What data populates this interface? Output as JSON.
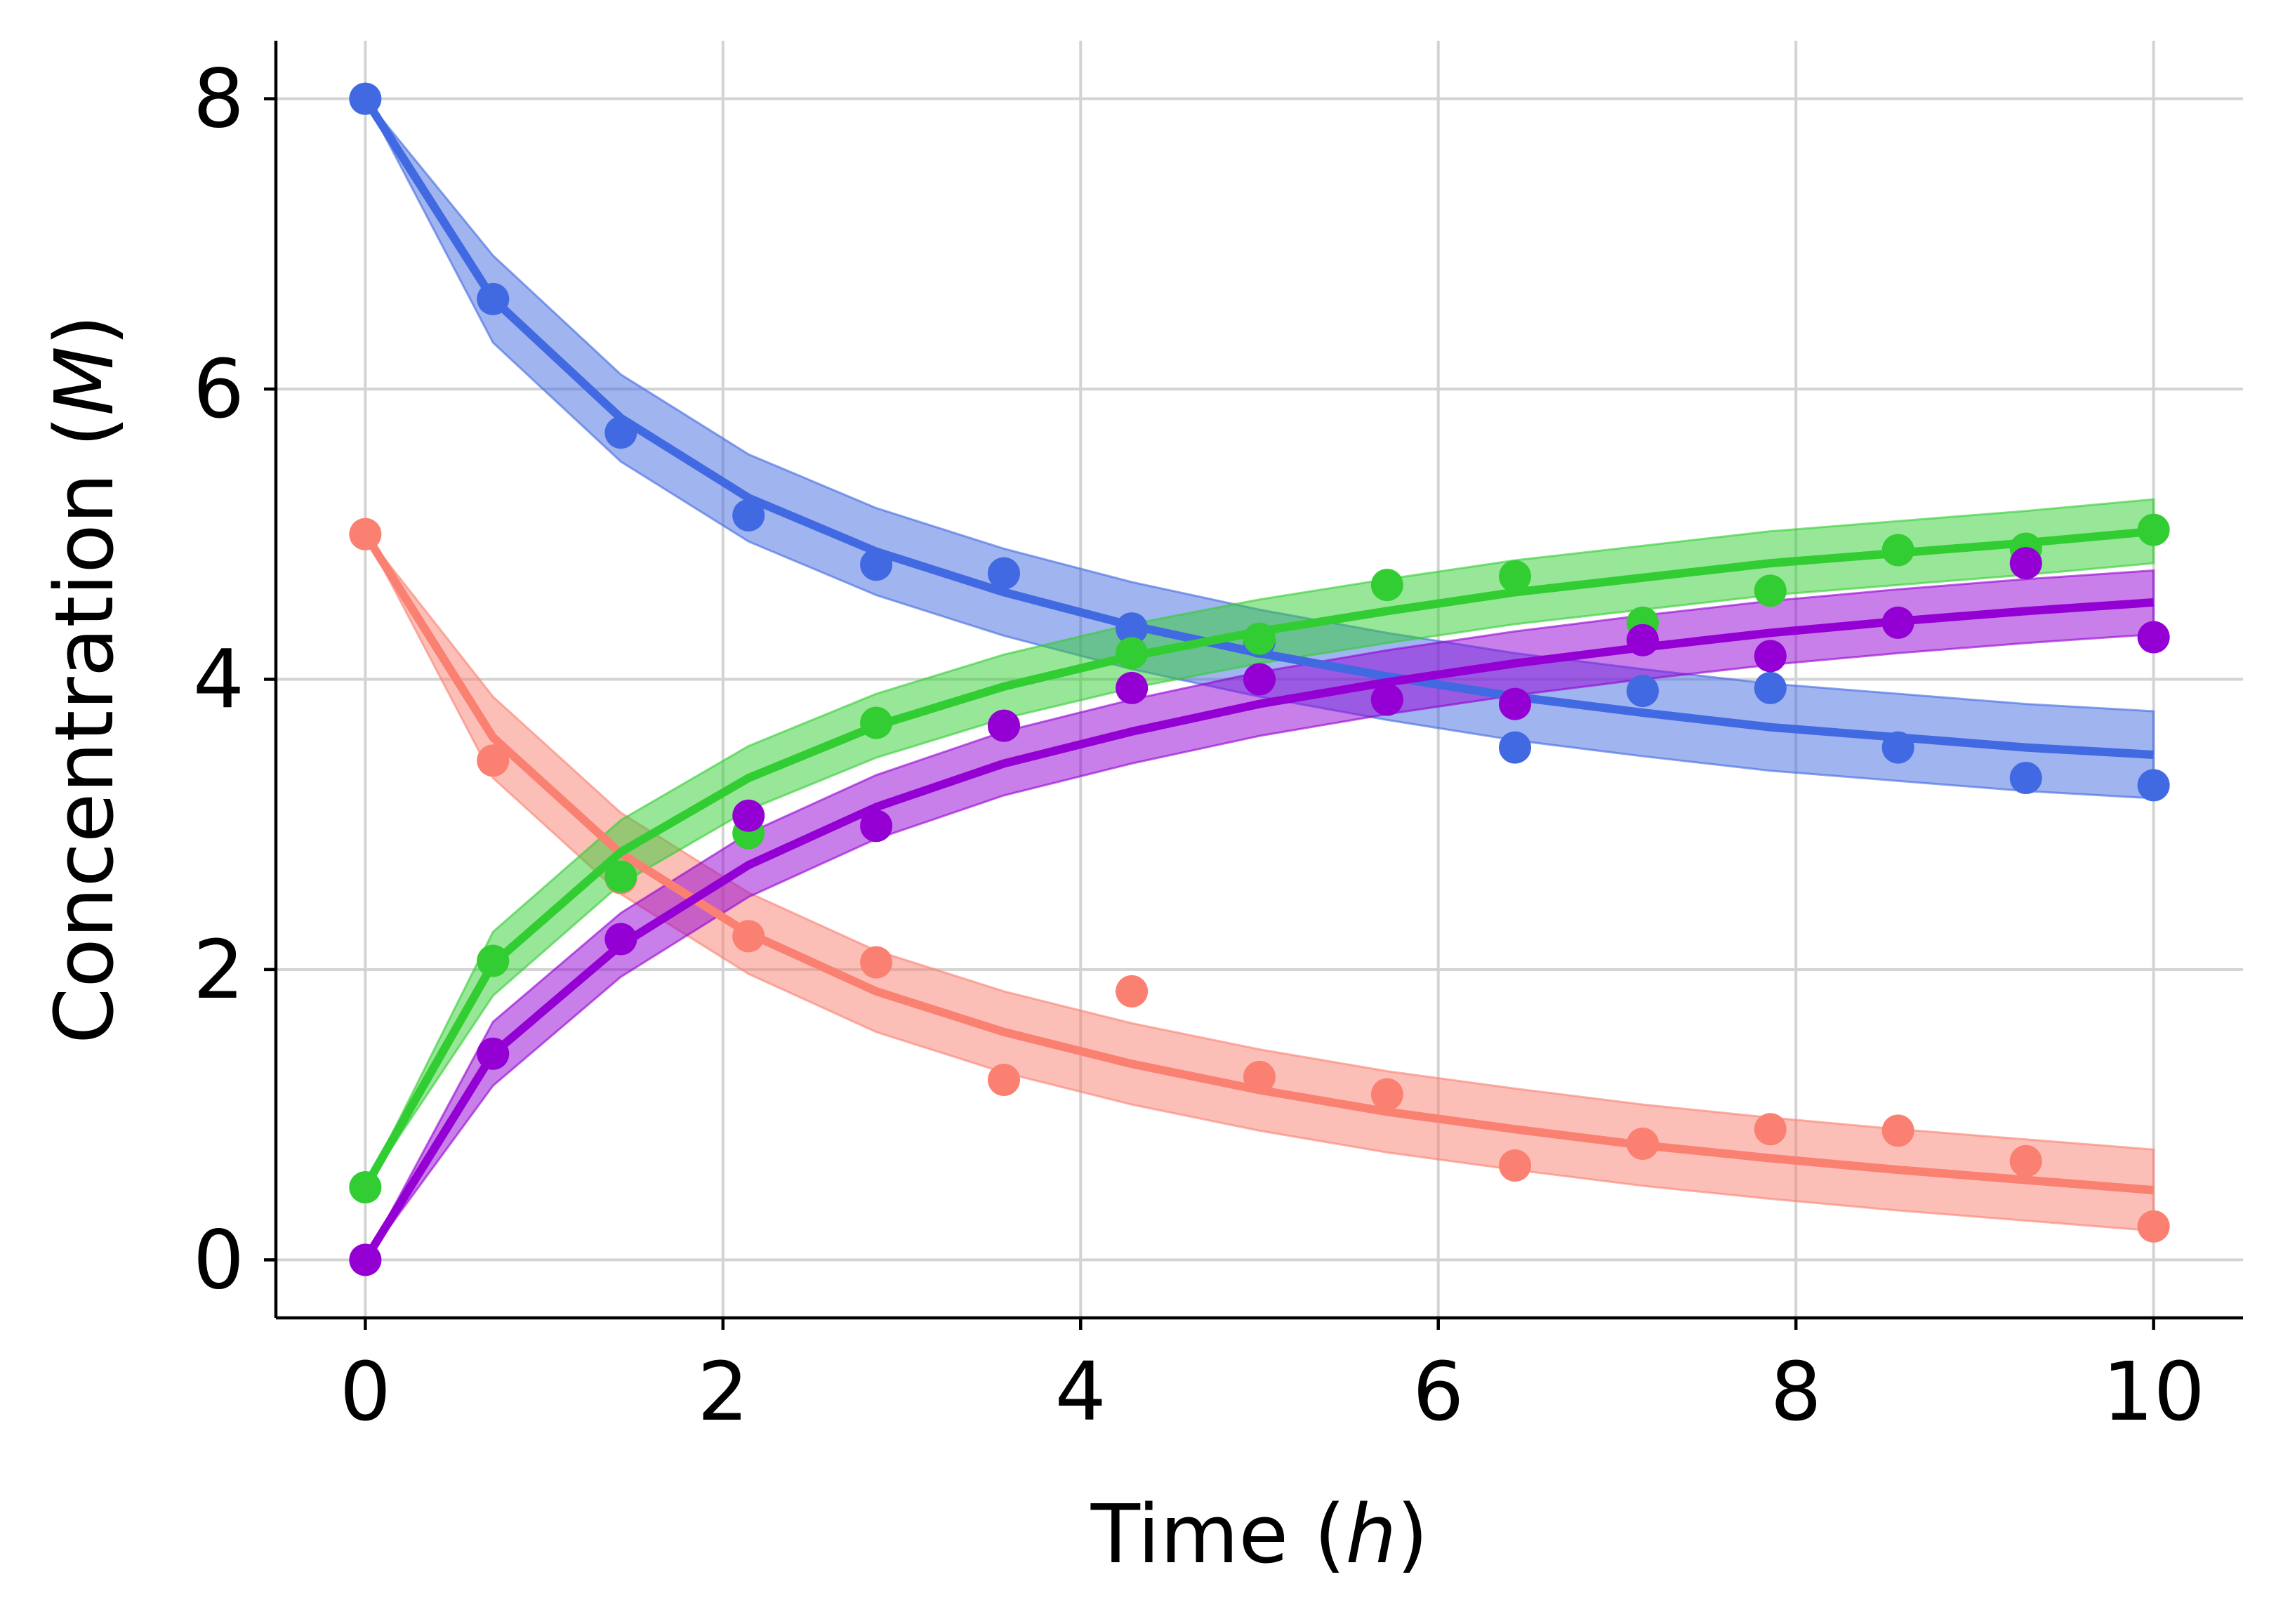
{
  "chart_data": {
    "type": "line",
    "xlabel": "Time",
    "xlabel_unit": "h",
    "ylabel": "Concentration",
    "ylabel_unit": "M",
    "xlim": [
      -0.5,
      10.5
    ],
    "ylim": [
      -0.4,
      8.4
    ],
    "xticks": [
      0,
      2,
      4,
      6,
      8,
      10
    ],
    "yticks": [
      0,
      2,
      4,
      6,
      8
    ],
    "xtick_labels": [
      "0",
      "2",
      "4",
      "6",
      "8",
      "10"
    ],
    "ytick_labels": [
      "0",
      "2",
      "4",
      "6",
      "8"
    ],
    "grid": true,
    "legend": "none",
    "fit_x": [
      0,
      0.714,
      1.429,
      2.143,
      2.857,
      3.571,
      4.286,
      5.0,
      5.714,
      6.429,
      7.143,
      7.857,
      8.571,
      9.286,
      10.0
    ],
    "series": [
      {
        "color": "#4169e1",
        "points_x": [
          0,
          0.714,
          1.429,
          2.143,
          2.857,
          3.571,
          4.286,
          5.0,
          5.714,
          6.429,
          7.143,
          7.857,
          8.571,
          9.286,
          10.0
        ],
        "points_y": [
          8.0,
          6.62,
          5.7,
          5.13,
          4.79,
          4.73,
          4.35,
          4.26,
          3.86,
          3.53,
          3.92,
          3.94,
          3.53,
          3.32,
          3.27
        ],
        "fit_y": [
          8.0,
          6.62,
          5.8,
          5.25,
          4.88,
          4.6,
          4.37,
          4.18,
          4.02,
          3.88,
          3.77,
          3.67,
          3.6,
          3.53,
          3.48
        ],
        "band": 0.3
      },
      {
        "color": "#fa8072",
        "points_x": [
          0,
          0.714,
          1.429,
          2.143,
          2.857,
          3.571,
          4.286,
          5.0,
          5.714,
          6.429,
          7.143,
          7.857,
          8.571,
          9.286,
          10.0
        ],
        "points_y": [
          5.0,
          3.44,
          2.63,
          2.23,
          2.05,
          1.24,
          1.85,
          1.26,
          1.14,
          0.65,
          0.8,
          0.9,
          0.89,
          0.68,
          0.23
        ],
        "fit_y": [
          5.0,
          3.6,
          2.8,
          2.25,
          1.85,
          1.57,
          1.35,
          1.17,
          1.02,
          0.9,
          0.79,
          0.7,
          0.62,
          0.55,
          0.48
        ],
        "band": 0.28
      },
      {
        "color": "#32cd32",
        "points_x": [
          0,
          0.714,
          1.429,
          2.143,
          2.857,
          3.571,
          4.286,
          5.0,
          5.714,
          6.429,
          7.143,
          7.857,
          8.571,
          9.286,
          10.0
        ],
        "points_y": [
          0.5,
          2.06,
          2.64,
          2.94,
          3.7,
          3.68,
          4.18,
          4.28,
          4.65,
          4.71,
          4.39,
          4.61,
          4.89,
          4.9,
          5.03
        ],
        "fit_y": [
          0.5,
          2.04,
          2.81,
          3.32,
          3.68,
          3.95,
          4.16,
          4.33,
          4.47,
          4.6,
          4.7,
          4.8,
          4.87,
          4.94,
          5.02
        ],
        "band": 0.22
      },
      {
        "color": "#9400d3",
        "points_x": [
          0,
          0.714,
          1.429,
          2.143,
          2.857,
          3.571,
          4.286,
          5.0,
          5.714,
          6.429,
          7.143,
          7.857,
          8.571,
          9.286,
          10.0
        ],
        "points_y": [
          0.0,
          1.42,
          2.21,
          3.06,
          2.99,
          3.68,
          3.94,
          4.0,
          3.86,
          3.83,
          4.27,
          4.16,
          4.39,
          4.8,
          4.29
        ],
        "fit_y": [
          0.0,
          1.42,
          2.17,
          2.72,
          3.12,
          3.42,
          3.64,
          3.83,
          3.98,
          4.11,
          4.22,
          4.32,
          4.4,
          4.47,
          4.53
        ],
        "band": 0.22
      }
    ]
  }
}
